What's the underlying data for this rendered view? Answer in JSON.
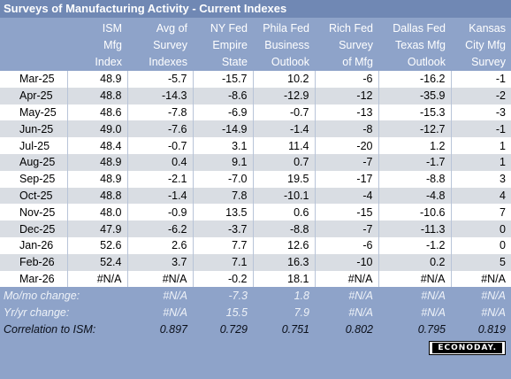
{
  "title": "Surveys of Manufacturing Activity - Current Indexes",
  "headers": [
    [
      "",
      "",
      ""
    ],
    [
      "ISM",
      "Mfg",
      "Index"
    ],
    [
      "Avg of",
      "Survey",
      "Indexes"
    ],
    [
      "NY Fed",
      "Empire",
      "State"
    ],
    [
      "Phila Fed",
      "Business",
      "Outlook"
    ],
    [
      "Rich Fed",
      "Survey",
      "of Mfg"
    ],
    [
      "Dallas Fed",
      "Texas Mfg",
      "Outlook"
    ],
    [
      "Kansas",
      "City Mfg",
      "Survey"
    ]
  ],
  "rows": [
    [
      "Mar-25",
      "48.9",
      "-5.7",
      "-15.7",
      "10.2",
      "-6",
      "-16.2",
      "-1"
    ],
    [
      "Apr-25",
      "48.8",
      "-14.3",
      "-8.6",
      "-12.9",
      "-12",
      "-35.9",
      "-2"
    ],
    [
      "May-25",
      "48.6",
      "-7.8",
      "-6.9",
      "-0.7",
      "-13",
      "-15.3",
      "-3"
    ],
    [
      "Jun-25",
      "49.0",
      "-7.6",
      "-14.9",
      "-1.4",
      "-8",
      "-12.7",
      "-1"
    ],
    [
      "Jul-25",
      "48.4",
      "-0.7",
      "3.1",
      "11.4",
      "-20",
      "1.2",
      "1"
    ],
    [
      "Aug-25",
      "48.9",
      "0.4",
      "9.1",
      "0.7",
      "-7",
      "-1.7",
      "1"
    ],
    [
      "Sep-25",
      "48.9",
      "-2.1",
      "-7.0",
      "19.5",
      "-17",
      "-8.8",
      "3"
    ],
    [
      "Oct-25",
      "48.8",
      "-1.4",
      "7.8",
      "-10.1",
      "-4",
      "-4.8",
      "4"
    ],
    [
      "Nov-25",
      "48.0",
      "-0.9",
      "13.5",
      "0.6",
      "-15",
      "-10.6",
      "7"
    ],
    [
      "Dec-25",
      "47.9",
      "-6.2",
      "-3.7",
      "-8.8",
      "-7",
      "-11.3",
      "0"
    ],
    [
      "Jan-26",
      "52.6",
      "2.6",
      "7.7",
      "12.6",
      "-6",
      "-1.2",
      "0"
    ],
    [
      "Feb-26",
      "52.4",
      "3.7",
      "7.1",
      "16.3",
      "-10",
      "0.2",
      "5"
    ],
    [
      "Mar-26",
      "#N/A",
      "#N/A",
      "-0.2",
      "18.1",
      "#N/A",
      "#N/A",
      "#N/A"
    ]
  ],
  "stats": [
    {
      "label": "Mo/mo change:",
      "values": [
        "",
        "#N/A",
        "-7.3",
        "1.8",
        "#N/A",
        "#N/A",
        "#N/A"
      ]
    },
    {
      "label": "Yr/yr change:",
      "values": [
        "",
        "#N/A",
        "15.5",
        "7.9",
        "#N/A",
        "#N/A",
        "#N/A"
      ]
    },
    {
      "label": "Correlation to ISM:",
      "values": [
        "",
        "0.897",
        "0.729",
        "0.751",
        "0.802",
        "0.795",
        "0.819"
      ]
    }
  ],
  "logo": "ECONODAY.",
  "colors": {
    "header_bg": "#8ea3c9",
    "title_bg": "#7088b4",
    "row_alt": "#d9dde3"
  }
}
